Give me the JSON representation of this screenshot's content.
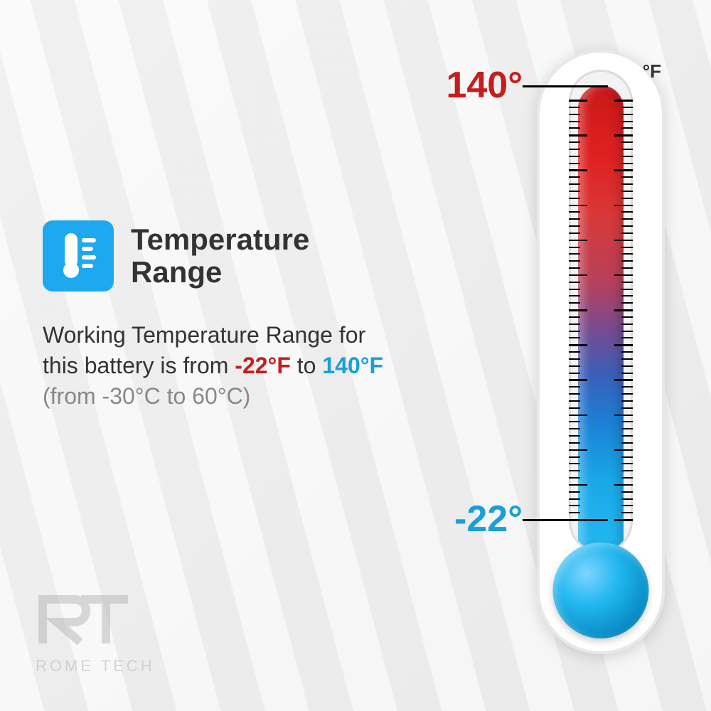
{
  "title": "Temperature\nRange",
  "description": {
    "prefix": "Working Temperature Range for this battery is from ",
    "low_f": "-22°F",
    "mid": " to ",
    "high_f": "140°F",
    "celsius": "(from -30°C to 60°C)"
  },
  "thermometer": {
    "unit": "°F",
    "high_label": "140°",
    "low_label": "-22°",
    "high_color": "#c41e1e",
    "low_color": "#1a9fd8",
    "gradient_top": "#c91818",
    "gradient_bottom": "#22b8f0",
    "bulb_color": "#22b8f0",
    "body_bg": "#ffffff",
    "inner_bg": "#f3f3f3",
    "tick_count": 60,
    "major_every": 5
  },
  "icon": {
    "bg_color": "#1ea8ef",
    "fg_color": "#ffffff"
  },
  "logo": {
    "brand": "ROME TECH",
    "color": "#b5b5b5"
  },
  "text_color": "#333333",
  "celsius_color": "#888888",
  "background": "#f0f0f0"
}
